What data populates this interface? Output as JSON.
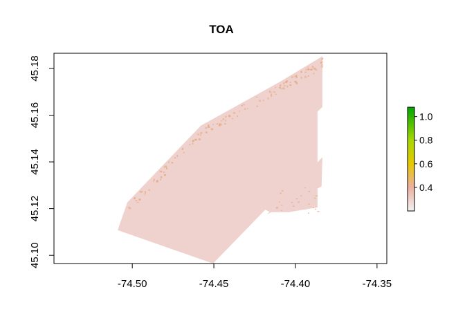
{
  "title": "TOA",
  "map_data": {
    "type": "raster",
    "x_range": [
      -74.548,
      -74.344
    ],
    "y_range": [
      45.0965,
      45.1865
    ],
    "x_ticks": [
      {
        "value": -74.5,
        "label": "-74.50"
      },
      {
        "value": -74.45,
        "label": "-74.45"
      },
      {
        "value": -74.4,
        "label": "-74.40"
      },
      {
        "value": -74.35,
        "label": "-74.35"
      }
    ],
    "y_ticks": [
      {
        "value": 45.1,
        "label": "45.10"
      },
      {
        "value": 45.12,
        "label": "45.12"
      },
      {
        "value": 45.14,
        "label": "45.14"
      },
      {
        "value": 45.16,
        "label": "45.16"
      },
      {
        "value": 45.18,
        "label": "45.18"
      }
    ],
    "main_polygon": [
      [
        -74.509,
        45.1108
      ],
      [
        -74.503,
        45.1227
      ],
      [
        -74.458,
        45.1555
      ],
      [
        -74.41,
        45.1741
      ],
      [
        -74.3835,
        45.1852
      ],
      [
        -74.3835,
        45.1635
      ],
      [
        -74.3865,
        45.1615
      ],
      [
        -74.3865,
        45.1205
      ],
      [
        -74.404,
        45.1185
      ],
      [
        -74.4155,
        45.1185
      ],
      [
        -74.4185,
        45.1195
      ],
      [
        -74.4505,
        45.0965
      ],
      [
        -74.509,
        45.1108
      ]
    ],
    "inset_polygon": [
      [
        -74.4175,
        45.1175
      ],
      [
        -74.384,
        45.1295
      ],
      [
        -74.3835,
        45.142
      ],
      [
        -74.4175,
        45.1175
      ]
    ],
    "fill_color": "#efd2cd",
    "speckle_color": "#e6ab86"
  },
  "colorbar": {
    "min": 0.2,
    "max": 1.08,
    "ticks": [
      {
        "value": 0.4,
        "label": "0.4"
      },
      {
        "value": 0.6,
        "label": "0.6"
      },
      {
        "value": 0.8,
        "label": "0.8"
      },
      {
        "value": 1.0,
        "label": "1.0"
      }
    ],
    "gradient_stops": [
      {
        "value": 0.2,
        "color": "#f2f2f2"
      },
      {
        "value": 0.4,
        "color": "#ecb0a0"
      },
      {
        "value": 0.6,
        "color": "#e6c800"
      },
      {
        "value": 0.8,
        "color": "#a6d800"
      },
      {
        "value": 1.08,
        "color": "#00a600"
      }
    ]
  }
}
